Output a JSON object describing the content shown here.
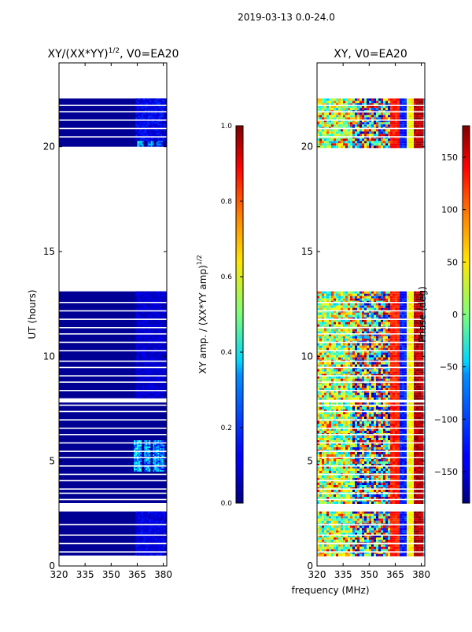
{
  "figure": {
    "suptitle": "2019-03-13 0.0-24.0",
    "shared_xlabel": "frequency (MHz)"
  },
  "chart_data": [
    {
      "type": "heatmap",
      "title_main": "XY/(XX*YY)",
      "title_exp": "1/2",
      "title_suffix": ", V0=EA20",
      "xlabel": "",
      "ylabel": "UT (hours)",
      "xlim": [
        320,
        382
      ],
      "ylim": [
        0,
        24
      ],
      "xticks": [
        "320",
        "335",
        "350",
        "365",
        "380"
      ],
      "yticks": [
        "0",
        "5",
        "10",
        "15",
        "20"
      ],
      "colorbar": {
        "label_main": "XY amp. / (XX*YY amp)",
        "label_exp": "1/2",
        "range": [
          0.0,
          1.0
        ],
        "ticks": [
          "0.0",
          "0.2",
          "0.4",
          "0.6",
          "0.8",
          "1.0"
        ]
      },
      "data_blocks_hours": [
        [
          0.5,
          2.6
        ],
        [
          3.0,
          7.8
        ],
        [
          8.0,
          13.1
        ],
        [
          20.0,
          22.3
        ]
      ],
      "flagged_lines_hours": [
        0.7,
        1.1,
        1.5,
        2.0,
        3.2,
        3.5,
        3.7,
        4.1,
        4.4,
        4.8,
        5.2,
        5.5,
        5.9,
        6.3,
        6.6,
        7.0,
        7.4,
        7.7,
        8.4,
        8.8,
        9.1,
        9.5,
        9.8,
        10.3,
        10.7,
        11.1,
        11.4,
        11.8,
        12.2,
        12.6,
        20.5,
        20.9,
        21.3,
        21.7,
        22.0
      ],
      "hotspots": [
        {
          "freq": [
            363,
            367
          ],
          "hours": [
            4.5,
            6.0
          ],
          "value": 0.35
        },
        {
          "freq": [
            369,
            372
          ],
          "hours": [
            4.5,
            6.0
          ],
          "value": 0.33
        },
        {
          "freq": [
            374,
            377
          ],
          "hours": [
            4.5,
            6.0
          ],
          "value": 0.3
        },
        {
          "freq": [
            378,
            380
          ],
          "hours": [
            4.5,
            6.0
          ],
          "value": 0.28
        },
        {
          "freq": [
            365,
            368
          ],
          "hours": [
            20.0,
            20.3
          ],
          "value": 0.35
        },
        {
          "freq": [
            371,
            374
          ],
          "hours": [
            20.0,
            20.3
          ],
          "value": 0.3
        },
        {
          "freq": [
            376,
            379
          ],
          "hours": [
            20.0,
            20.3
          ],
          "value": 0.3
        },
        {
          "freq": [
            364,
            381
          ],
          "hours": [
            20.3,
            22.3
          ],
          "value": 0.14
        },
        {
          "freq": [
            364,
            381
          ],
          "hours": [
            8.0,
            13.1
          ],
          "value": 0.1
        },
        {
          "freq": [
            364,
            381
          ],
          "hours": [
            0.5,
            2.6
          ],
          "value": 0.12
        }
      ]
    },
    {
      "type": "heatmap",
      "title": "XY, V0=EA20",
      "xlabel": "frequency (MHz)",
      "ylabel": "",
      "xlim": [
        320,
        382
      ],
      "ylim": [
        0,
        24
      ],
      "xticks": [
        "320",
        "335",
        "350",
        "365",
        "380"
      ],
      "yticks": [
        "0",
        "5",
        "10",
        "15",
        "20"
      ],
      "colorbar": {
        "label": "Phase (deg)",
        "range": [
          -180,
          180
        ],
        "ticks": [
          "150",
          "100",
          "50",
          "0",
          "−50",
          "−100",
          "−150"
        ]
      },
      "data_blocks_hours": [
        [
          0.5,
          2.6
        ],
        [
          3.0,
          7.8
        ],
        [
          8.0,
          13.1
        ],
        [
          20.0,
          22.3
        ]
      ],
      "coherent_bands_mhz": [
        [
          364,
          368
        ],
        [
          369,
          372
        ],
        [
          374,
          378
        ],
        [
          379,
          382
        ]
      ],
      "noise": "phase random (-180..180) below 362 MHz"
    }
  ],
  "colors": {
    "jet_low": "#00007f",
    "jet_high": "#7f0000",
    "background": "#ffffff"
  }
}
